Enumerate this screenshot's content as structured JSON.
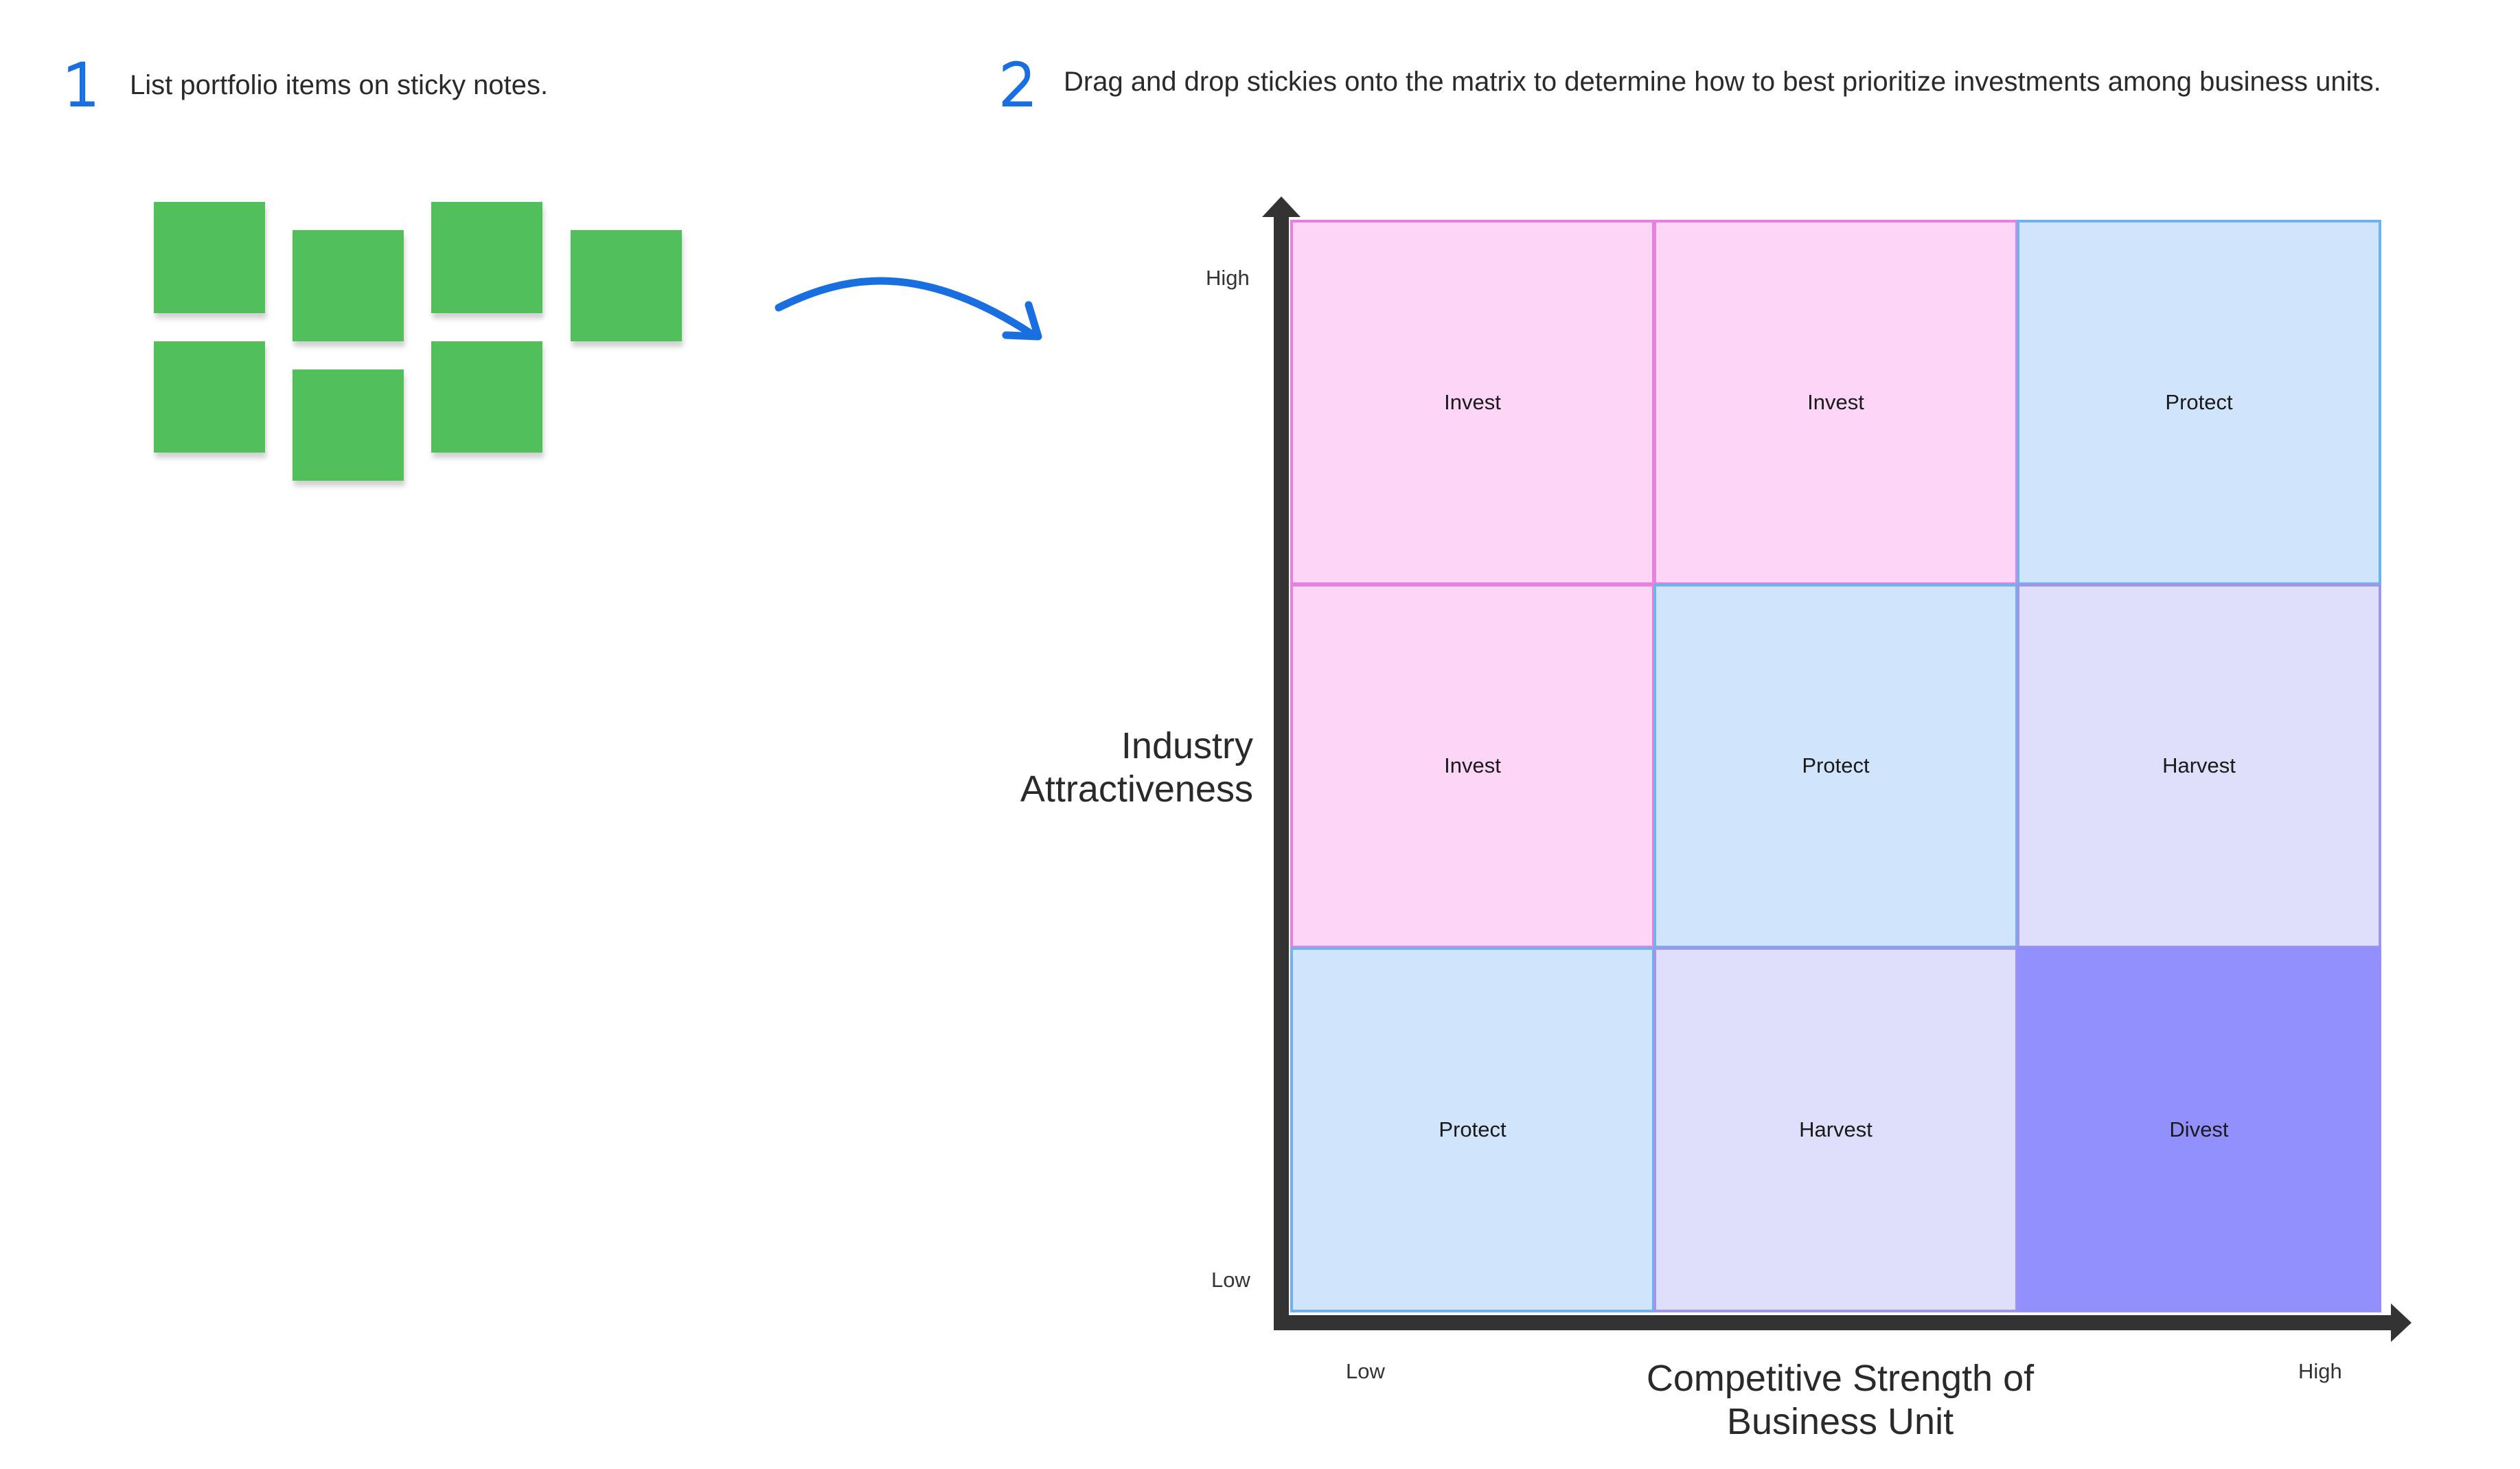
{
  "steps": [
    {
      "number": "1",
      "text": "List portfolio items on sticky notes."
    },
    {
      "number": "2",
      "text": "Drag and drop stickies onto the matrix to determine how to best prioritize investments among business units."
    }
  ],
  "sticky_notes": {
    "count": 7,
    "color": "#52c05a"
  },
  "arrow": {
    "color": "#1a6fe0"
  },
  "matrix": {
    "y_axis": {
      "title_line1": "Industry",
      "title_line2": "Attractiveness",
      "high_label": "High",
      "low_label": "Low"
    },
    "x_axis": {
      "title_line1": "Competitive Strength of",
      "title_line2": "Business Unit",
      "low_label": "Low",
      "high_label": "High"
    },
    "rows": [
      [
        "Invest",
        "Invest",
        "Protect"
      ],
      [
        "Invest",
        "Protect",
        "Harvest"
      ],
      [
        "Protect",
        "Harvest",
        "Divest"
      ]
    ],
    "colors": {
      "Invest": {
        "fill": "#fdd5f6",
        "border": "#ea80dd"
      },
      "Protect": {
        "fill": "#d0e4fc",
        "border": "#6fb2ef"
      },
      "Harvest": {
        "fill": "#dfdefb",
        "border": "#9d97ea"
      },
      "Divest": {
        "fill": "#9290fc",
        "border": "#9290fc"
      }
    },
    "axis_color": "#333333"
  }
}
